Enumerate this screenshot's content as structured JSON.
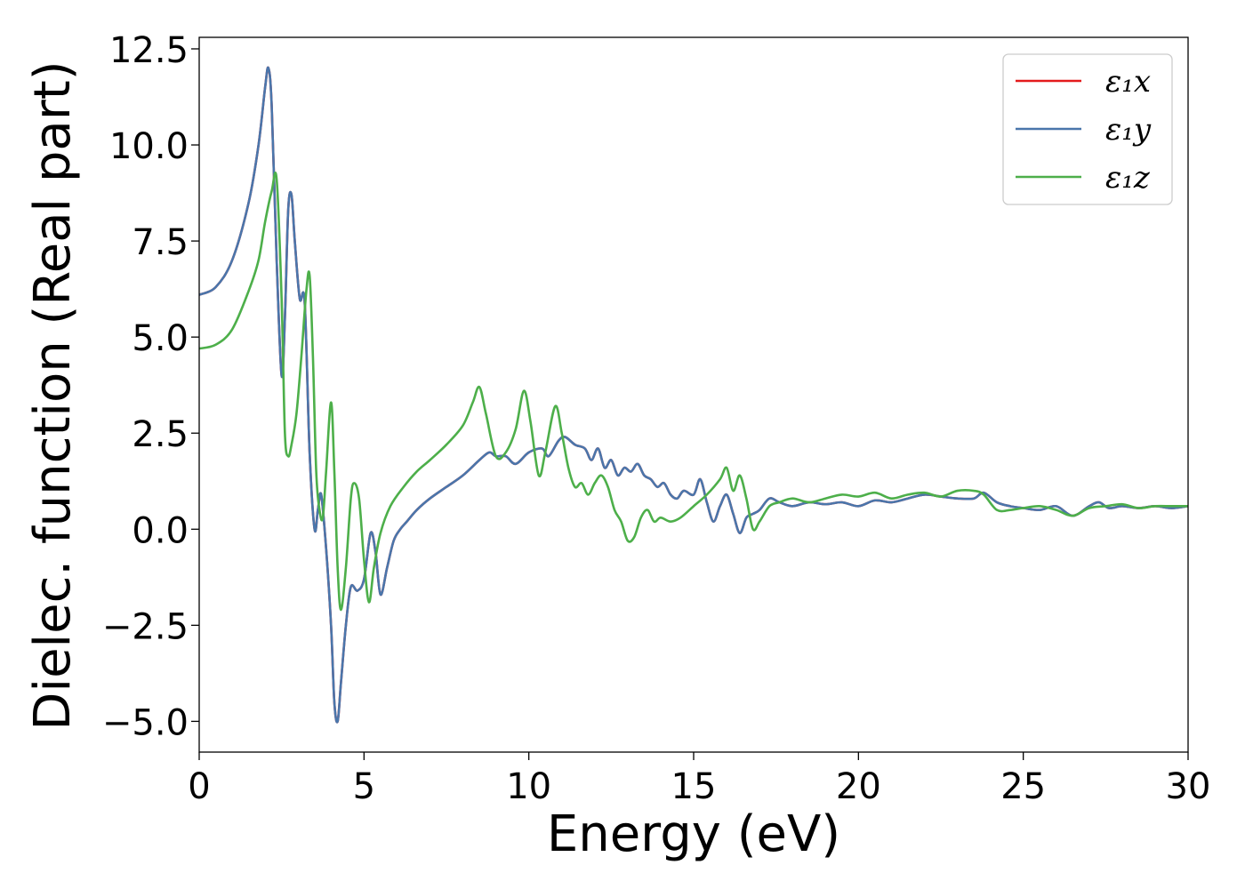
{
  "chart_data": {
    "type": "line",
    "title": "",
    "xlabel": "Energy (eV)",
    "ylabel": "Dielec. function (Real part)",
    "xlim": [
      0,
      30
    ],
    "ylim": [
      -5.8,
      12.8
    ],
    "x_ticks": [
      0,
      5,
      10,
      15,
      20,
      25,
      30
    ],
    "x_tick_labels": [
      "0",
      "5",
      "10",
      "15",
      "20",
      "25",
      "30"
    ],
    "y_ticks": [
      -5.0,
      -2.5,
      0.0,
      2.5,
      5.0,
      7.5,
      10.0,
      12.5
    ],
    "y_tick_labels": [
      "−5.0",
      "−2.5",
      "0.0",
      "2.5",
      "5.0",
      "7.5",
      "10.0",
      "12.5"
    ],
    "grid": false,
    "legend_position": "top-right",
    "series": [
      {
        "name": "ε₁x",
        "color": "#e41a1c",
        "x": [
          0,
          0.5,
          1.0,
          1.5,
          1.8,
          2.0,
          2.1,
          2.2,
          2.35,
          2.5,
          2.6,
          2.7,
          2.8,
          2.9,
          3.05,
          3.2,
          3.35,
          3.5,
          3.6,
          3.7,
          3.85,
          4.0,
          4.1,
          4.2,
          4.3,
          4.45,
          4.6,
          4.8,
          5.0,
          5.2,
          5.35,
          5.5,
          5.7,
          5.9,
          6.1,
          6.3,
          6.6,
          7.0,
          7.5,
          8.0,
          8.5,
          8.8,
          9.0,
          9.3,
          9.6,
          10.0,
          10.4,
          10.6,
          10.9,
          11.1,
          11.4,
          11.7,
          11.9,
          12.1,
          12.3,
          12.5,
          12.7,
          12.9,
          13.1,
          13.3,
          13.5,
          13.7,
          13.9,
          14.1,
          14.3,
          14.5,
          14.7,
          15.0,
          15.2,
          15.4,
          15.6,
          15.8,
          16.0,
          16.2,
          16.4,
          16.6,
          16.8,
          17.0,
          17.3,
          17.6,
          18.0,
          18.5,
          19.0,
          19.5,
          20.0,
          20.5,
          21.0,
          21.5,
          22.0,
          22.5,
          23.0,
          23.5,
          23.8,
          24.2,
          24.6,
          25.0,
          25.5,
          26.0,
          26.5,
          27.0,
          27.3,
          27.6,
          28.0,
          28.5,
          29.0,
          29.5,
          30.0
        ],
        "y": [
          6.1,
          6.3,
          7.0,
          8.5,
          10.0,
          11.5,
          12.0,
          11.0,
          7.0,
          4.0,
          5.5,
          8.3,
          8.7,
          7.5,
          6.0,
          5.9,
          2.0,
          0.0,
          0.5,
          0.9,
          -0.5,
          -2.5,
          -4.5,
          -5.0,
          -4.0,
          -2.5,
          -1.5,
          -1.6,
          -1.3,
          -0.1,
          -0.6,
          -1.7,
          -1.0,
          -0.3,
          0.0,
          0.2,
          0.5,
          0.8,
          1.1,
          1.4,
          1.8,
          2.0,
          1.9,
          1.9,
          1.7,
          2.0,
          2.1,
          1.9,
          2.3,
          2.4,
          2.2,
          2.1,
          1.8,
          2.1,
          1.6,
          1.8,
          1.4,
          1.6,
          1.5,
          1.7,
          1.4,
          1.3,
          1.1,
          1.2,
          0.9,
          0.8,
          1.0,
          0.9,
          1.3,
          0.7,
          0.2,
          0.6,
          0.9,
          0.4,
          -0.1,
          0.3,
          0.4,
          0.5,
          0.8,
          0.7,
          0.6,
          0.7,
          0.65,
          0.7,
          0.6,
          0.75,
          0.7,
          0.8,
          0.9,
          0.85,
          0.8,
          0.8,
          0.95,
          0.7,
          0.6,
          0.55,
          0.5,
          0.6,
          0.35,
          0.6,
          0.7,
          0.55,
          0.6,
          0.55,
          0.6,
          0.55,
          0.6
        ]
      },
      {
        "name": "ε₁y",
        "color": "#4a76ab",
        "x": [
          0,
          0.5,
          1.0,
          1.5,
          1.8,
          2.0,
          2.1,
          2.2,
          2.35,
          2.5,
          2.6,
          2.7,
          2.8,
          2.9,
          3.05,
          3.2,
          3.35,
          3.5,
          3.6,
          3.7,
          3.85,
          4.0,
          4.1,
          4.2,
          4.3,
          4.45,
          4.6,
          4.8,
          5.0,
          5.2,
          5.35,
          5.5,
          5.7,
          5.9,
          6.1,
          6.3,
          6.6,
          7.0,
          7.5,
          8.0,
          8.5,
          8.8,
          9.0,
          9.3,
          9.6,
          10.0,
          10.4,
          10.6,
          10.9,
          11.1,
          11.4,
          11.7,
          11.9,
          12.1,
          12.3,
          12.5,
          12.7,
          12.9,
          13.1,
          13.3,
          13.5,
          13.7,
          13.9,
          14.1,
          14.3,
          14.5,
          14.7,
          15.0,
          15.2,
          15.4,
          15.6,
          15.8,
          16.0,
          16.2,
          16.4,
          16.6,
          16.8,
          17.0,
          17.3,
          17.6,
          18.0,
          18.5,
          19.0,
          19.5,
          20.0,
          20.5,
          21.0,
          21.5,
          22.0,
          22.5,
          23.0,
          23.5,
          23.8,
          24.2,
          24.6,
          25.0,
          25.5,
          26.0,
          26.5,
          27.0,
          27.3,
          27.6,
          28.0,
          28.5,
          29.0,
          29.5,
          30.0
        ],
        "y": [
          6.1,
          6.3,
          7.0,
          8.5,
          10.0,
          11.5,
          12.0,
          11.0,
          7.0,
          4.0,
          5.5,
          8.3,
          8.7,
          7.5,
          6.0,
          5.9,
          2.0,
          0.0,
          0.5,
          0.9,
          -0.5,
          -2.5,
          -4.5,
          -5.0,
          -4.0,
          -2.5,
          -1.5,
          -1.6,
          -1.3,
          -0.1,
          -0.6,
          -1.7,
          -1.0,
          -0.3,
          0.0,
          0.2,
          0.5,
          0.8,
          1.1,
          1.4,
          1.8,
          2.0,
          1.9,
          1.9,
          1.7,
          2.0,
          2.1,
          1.9,
          2.3,
          2.4,
          2.2,
          2.1,
          1.8,
          2.1,
          1.6,
          1.8,
          1.4,
          1.6,
          1.5,
          1.7,
          1.4,
          1.3,
          1.1,
          1.2,
          0.9,
          0.8,
          1.0,
          0.9,
          1.3,
          0.7,
          0.2,
          0.6,
          0.9,
          0.4,
          -0.1,
          0.3,
          0.4,
          0.5,
          0.8,
          0.7,
          0.6,
          0.7,
          0.65,
          0.7,
          0.6,
          0.75,
          0.7,
          0.8,
          0.9,
          0.85,
          0.8,
          0.8,
          0.95,
          0.7,
          0.6,
          0.55,
          0.5,
          0.6,
          0.35,
          0.6,
          0.7,
          0.55,
          0.6,
          0.55,
          0.6,
          0.55,
          0.6
        ]
      },
      {
        "name": "ε₁z",
        "color": "#4daf4a",
        "x": [
          0,
          0.5,
          1.0,
          1.5,
          1.8,
          2.0,
          2.2,
          2.35,
          2.5,
          2.6,
          2.7,
          2.8,
          2.95,
          3.1,
          3.25,
          3.35,
          3.45,
          3.55,
          3.65,
          3.75,
          3.85,
          4.0,
          4.1,
          4.2,
          4.3,
          4.45,
          4.6,
          4.7,
          4.85,
          5.0,
          5.15,
          5.3,
          5.5,
          5.8,
          6.2,
          6.6,
          7.0,
          7.5,
          8.0,
          8.3,
          8.5,
          8.7,
          9.0,
          9.3,
          9.6,
          9.85,
          10.05,
          10.3,
          10.5,
          10.8,
          11.0,
          11.2,
          11.4,
          11.6,
          11.8,
          12.0,
          12.2,
          12.4,
          12.6,
          12.8,
          13.0,
          13.2,
          13.4,
          13.6,
          13.8,
          14.0,
          14.3,
          14.6,
          15.0,
          15.4,
          15.8,
          16.0,
          16.2,
          16.4,
          16.6,
          16.8,
          17.0,
          17.3,
          17.6,
          18.0,
          18.5,
          19.0,
          19.5,
          20.0,
          20.5,
          21.0,
          21.5,
          22.0,
          22.5,
          23.0,
          23.5,
          23.8,
          24.2,
          24.6,
          25.0,
          25.5,
          26.0,
          26.5,
          27.0,
          27.5,
          28.0,
          28.5,
          29.0,
          29.5,
          30.0
        ],
        "y": [
          4.7,
          4.8,
          5.2,
          6.2,
          7.0,
          8.0,
          8.8,
          9.1,
          6.0,
          2.5,
          1.9,
          2.2,
          3.0,
          4.5,
          6.2,
          6.6,
          4.5,
          1.5,
          0.5,
          0.3,
          1.5,
          3.3,
          1.5,
          -1.0,
          -2.1,
          -1.0,
          0.8,
          1.2,
          0.8,
          -0.8,
          -1.9,
          -1.0,
          -0.1,
          0.6,
          1.1,
          1.5,
          1.8,
          2.2,
          2.7,
          3.3,
          3.7,
          3.0,
          1.9,
          2.0,
          2.6,
          3.6,
          2.8,
          1.4,
          2.0,
          3.2,
          2.5,
          1.6,
          1.1,
          1.2,
          0.9,
          1.2,
          1.4,
          1.1,
          0.5,
          0.2,
          -0.3,
          -0.2,
          0.3,
          0.5,
          0.2,
          0.3,
          0.2,
          0.3,
          0.6,
          0.9,
          1.3,
          1.6,
          1.0,
          1.4,
          0.8,
          0.0,
          0.2,
          0.6,
          0.7,
          0.8,
          0.7,
          0.8,
          0.9,
          0.85,
          0.95,
          0.8,
          0.9,
          0.95,
          0.85,
          1.0,
          1.0,
          0.9,
          0.5,
          0.5,
          0.55,
          0.6,
          0.5,
          0.35,
          0.55,
          0.6,
          0.65,
          0.55,
          0.6,
          0.6,
          0.6
        ]
      }
    ]
  }
}
